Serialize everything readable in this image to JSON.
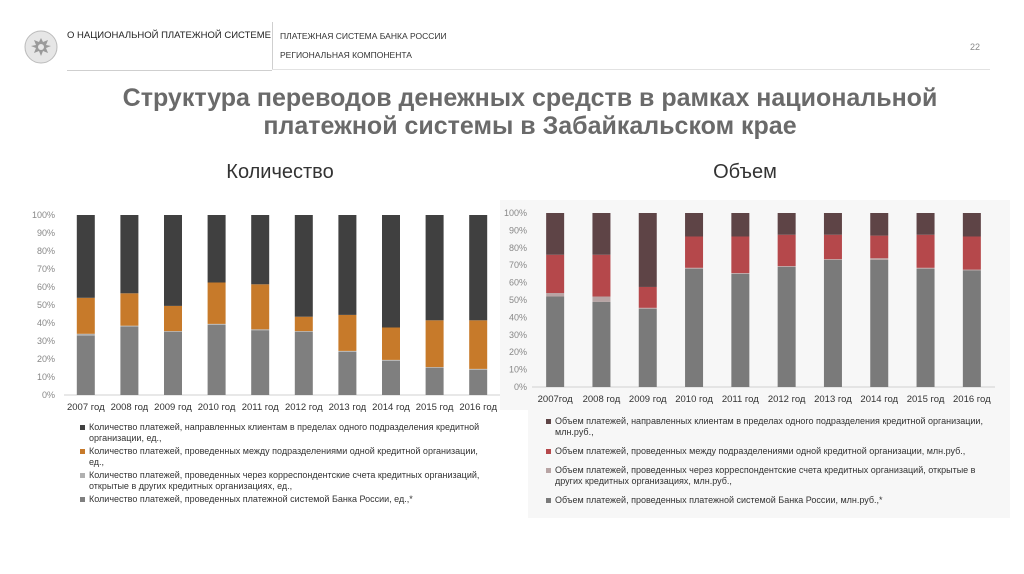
{
  "header": {
    "left_title": "О НАЦИОНАЛЬНОЙ ПЛАТЕЖНОЙ СИСТЕМЕ",
    "right_line1": "ПЛАТЕЖНАЯ СИСТЕМА БАНКА РОССИИ",
    "right_line2": "РЕГИОНАЛЬНАЯ КОМПОНЕНТА",
    "page_number": "22",
    "logo_icon": "bank-of-russia-eagle-icon"
  },
  "title": "Структура переводов денежных средств в рамках национальной платежной системы в Забайкальском крае",
  "colors": {
    "dark": "#404040",
    "orange": "#c77a2a",
    "light": "#b0b0b0",
    "gray": "#7f7f7f",
    "maroon_dark": "#5e4446",
    "red": "#b5484b",
    "pinkgray": "#b8a4a4",
    "gray_r": "#7a7a7a"
  },
  "chart_data": [
    {
      "type": "bar",
      "stacked": true,
      "title": "Количество",
      "categories": [
        "2007 год",
        "2008 год",
        "2009 год",
        "2010 год",
        "2011 год",
        "2012 год",
        "2013 год",
        "2014 год",
        "2015 год",
        "2016 год"
      ],
      "ylim": [
        0,
        100
      ],
      "yticks": [
        "0%",
        "10%",
        "20%",
        "30%",
        "40%",
        "50%",
        "60%",
        "70%",
        "80%",
        "90%",
        "100%"
      ],
      "series": [
        {
          "name": "Количество платежей, проведенных платежной системой Банка России, ед.,*",
          "color": "#7f7f7f",
          "values": [
            33,
            38,
            35,
            39,
            36,
            35,
            24,
            19,
            15,
            14
          ]
        },
        {
          "name": "Количество платежей, проведенных через корреспондентские счета кредитных организаций, открытые в других кредитных организациях, ед.,",
          "color": "#b0b0b0",
          "values": [
            1,
            0.5,
            0.5,
            0.5,
            0.5,
            0.5,
            0.5,
            0.5,
            0.5,
            0.5
          ]
        },
        {
          "name": "Количество платежей, проведенных между подразделениями одной кредитной организации, ед.,",
          "color": "#c77a2a",
          "values": [
            20,
            18,
            14,
            23,
            25,
            8,
            20,
            18,
            26,
            27
          ]
        },
        {
          "name": "Количество платежей, направленных клиентам в пределах одного подразделения кредитной организации, ед.,",
          "color": "#404040",
          "values": [
            46,
            43.5,
            50.5,
            37.5,
            38.5,
            56.5,
            55.5,
            62.5,
            58.5,
            58.5
          ]
        }
      ],
      "legend": [
        "Количество платежей, направленных клиентам в пределах одного подразделения кредитной организации, ед.,",
        "Количество платежей, проведенных между подразделениями одной кредитной организации, ед.,",
        "Количество платежей, проведенных через корреспондентские счета кредитных организаций, открытые в других кредитных организациях, ед.,",
        "Количество платежей, проведенных платежной системой Банка России, ед.,*"
      ]
    },
    {
      "type": "bar",
      "stacked": true,
      "title": "Объем",
      "categories": [
        "2007год",
        "2008 год",
        "2009 год",
        "2010 год",
        "2011 год",
        "2012 год",
        "2013 год",
        "2014 год",
        "2015 год",
        "2016 год"
      ],
      "ylim": [
        0,
        100
      ],
      "yticks": [
        "0%",
        "10%",
        "20%",
        "30%",
        "40%",
        "50%",
        "60%",
        "70%",
        "80%",
        "90%",
        "100%"
      ],
      "series": [
        {
          "name": "Объем платежей, проведенных платежной системой Банка России, млн.руб.,*",
          "color": "#7a7a7a",
          "values": [
            52,
            49,
            45,
            68,
            65,
            69,
            73,
            73,
            68,
            67
          ]
        },
        {
          "name": "Объем платежей, проведенных через корреспондентские счета кредитных организаций, открытые в других кредитных организациях, млн.руб.,",
          "color": "#b8a4a4",
          "values": [
            2,
            3,
            0.5,
            0.5,
            0.5,
            0.5,
            0.5,
            1,
            0.5,
            0.5
          ]
        },
        {
          "name": "Объем платежей, проведенных между подразделениями одной кредитной организации, млн.руб.,",
          "color": "#b5484b",
          "values": [
            22,
            24,
            12,
            18,
            21,
            18,
            14,
            13,
            19,
            19
          ]
        },
        {
          "name": "Объем платежей, направленных клиентам в пределах одного подразделения кредитной организации, млн.руб.,",
          "color": "#5e4446",
          "values": [
            24,
            24,
            42.5,
            13.5,
            13.5,
            12.5,
            12.5,
            13,
            12.5,
            13.5
          ]
        }
      ],
      "legend": [
        "Объем платежей, направленных клиентам в пределах одного подразделения кредитной организации, млн.руб.,",
        "Объем платежей, проведенных между подразделениями одной кредитной организации, млн.руб.,",
        "Объем платежей, проведенных через корреспондентские счета кредитных организаций, открытые в других кредитных организациях, млн.руб.,",
        "Объем платежей, проведенных платежной системой Банка России, млн.руб.,*"
      ]
    }
  ]
}
